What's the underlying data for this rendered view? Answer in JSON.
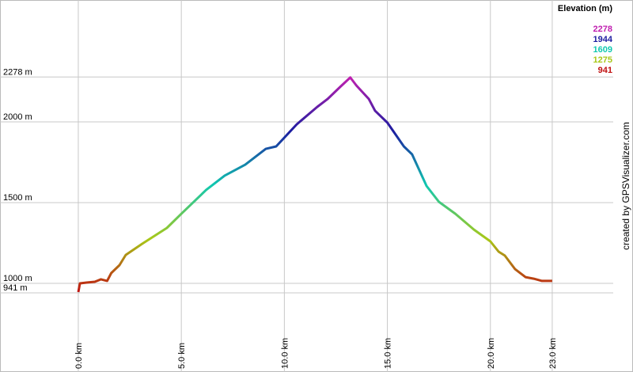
{
  "chart_data": {
    "type": "line",
    "credit": "created by GPSVisualizer.com",
    "legend": {
      "title": "Elevation (m)",
      "stops": [
        {
          "value": 2278,
          "color": "#c020b0"
        },
        {
          "value": 1944,
          "color": "#1c1ca0"
        },
        {
          "value": 1609,
          "color": "#10c8b0"
        },
        {
          "value": 1275,
          "color": "#a8c818"
        },
        {
          "value": 941,
          "color": "#c01010"
        }
      ]
    },
    "x": [
      0,
      0.08,
      0.4,
      0.8,
      1.1,
      1.4,
      1.6,
      2.0,
      2.3,
      3.1,
      4.3,
      5.0,
      6.2,
      7.1,
      8.1,
      9.1,
      9.6,
      10.6,
      11.6,
      12.1,
      12.7,
      13.2,
      13.5,
      14.1,
      14.4,
      15.0,
      15.8,
      16.2,
      16.9,
      17.5,
      18.3,
      19.2,
      20.0,
      20.4,
      20.7,
      21.2,
      21.7,
      22.1,
      22.5,
      23.0
    ],
    "values": [
      946,
      1000,
      1005,
      1010,
      1025,
      1015,
      1064,
      1113,
      1176,
      1245,
      1343,
      1431,
      1578,
      1667,
      1735,
      1833,
      1848,
      1985,
      2093,
      2142,
      2216,
      2275,
      2225,
      2142,
      2069,
      1995,
      1848,
      1799,
      1603,
      1505,
      1431,
      1333,
      1260,
      1196,
      1172,
      1088,
      1039,
      1029,
      1015,
      1015
    ],
    "xlim": [
      -3.8,
      26.92
    ],
    "ylim": [
      451,
      2755
    ],
    "xticks": [
      {
        "value": 0,
        "label": "0.0 km"
      },
      {
        "value": 5,
        "label": "5.0 km"
      },
      {
        "value": 10,
        "label": "10.0 km"
      },
      {
        "value": 15,
        "label": "15.0 km"
      },
      {
        "value": 20,
        "label": "20.0 km"
      },
      {
        "value": 23,
        "label": "23.0 km"
      }
    ],
    "yticks": [
      {
        "value": 941,
        "label": "941 m"
      },
      {
        "value": 1000,
        "label": "1000 m"
      },
      {
        "value": 1500,
        "label": "1500 m"
      },
      {
        "value": 2000,
        "label": "2000 m"
      },
      {
        "value": 2278,
        "label": "2278 m"
      }
    ],
    "grid": true
  }
}
